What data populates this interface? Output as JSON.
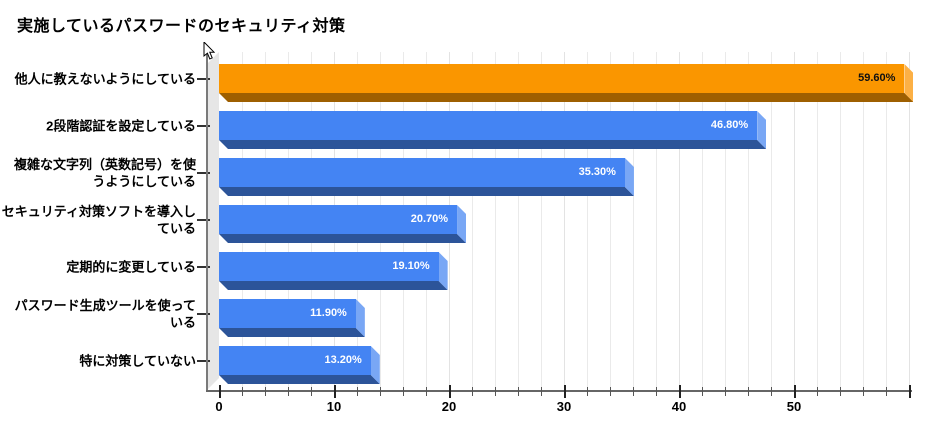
{
  "title": "実施しているパスワードのセキュリティ対策",
  "chart_data": {
    "type": "bar",
    "orientation": "horizontal",
    "style": "3d",
    "title": "実施しているパスワードのセキュリティ対策",
    "categories": [
      "他人に教えないようにしている",
      "2段階認証を設定している",
      "複雑な文字列（英数記号）を使\nうようにしている",
      "セキュリティ対策ソフトを導入し\nている",
      "定期的に変更している",
      "パスワード生成ツールを使って\nいる",
      "特に対策していない"
    ],
    "values": [
      59.6,
      46.8,
      35.3,
      20.7,
      19.1,
      11.9,
      13.2
    ],
    "value_labels": [
      "59.60%",
      "46.80%",
      "35.30%",
      "20.70%",
      "19.10%",
      "11.90%",
      "13.20%"
    ],
    "xlabel": "",
    "ylabel": "",
    "xlim": [
      0,
      60
    ],
    "x_tick_labels": [
      "0",
      "10",
      "20",
      "30",
      "40",
      "50"
    ],
    "x_major_step": 10,
    "x_minor_step": 2,
    "grid": true,
    "legend": false,
    "highlight_index": 0,
    "colors": {
      "highlight": {
        "face": "#FA9600",
        "light": "#FCB045",
        "dark": "#9E5F00",
        "text": "#111111"
      },
      "default": {
        "face": "#4484F3",
        "light": "#79A7F5",
        "dark": "#2C5499",
        "text": "#FFFFFF"
      }
    }
  }
}
